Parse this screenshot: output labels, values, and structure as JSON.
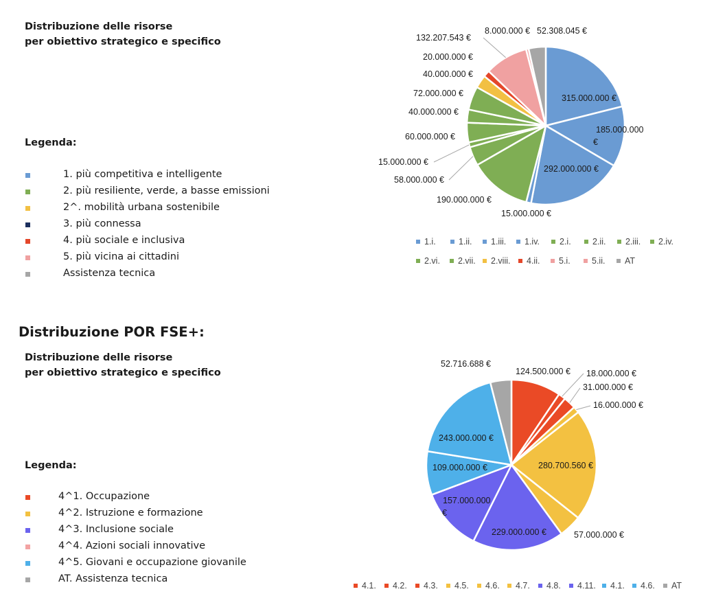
{
  "fesr": {
    "subtitle_lines": [
      "Distribuzione delle risorse",
      "per obiettivo strategico e specifico"
    ],
    "legend_title": "Legenda:",
    "legend": [
      {
        "label": "1. più competitiva e intelligente",
        "color": "#6a9bd3"
      },
      {
        "label": "2. più resiliente, verde, a basse emissioni",
        "color": "#7fae54"
      },
      {
        "label": "2^. mobilità urbana sostenibile",
        "color": "#f2c043"
      },
      {
        "label": "3. più connessa",
        "color": "#1c2f5e"
      },
      {
        "label": "4. più sociale e inclusiva",
        "color": "#e4472a"
      },
      {
        "label": "5. più vicina ai cittadini",
        "color": "#f0a1a1"
      },
      {
        "label": "Assistenza tecnica",
        "color": "#a6a6a6"
      }
    ]
  },
  "fse": {
    "section_title": "Distribuzione POR FSE+:",
    "subtitle_lines": [
      "Distribuzione delle risorse",
      "per obiettivo strategico e specifico"
    ],
    "legend_title": "Legenda:",
    "legend": [
      {
        "label": "4^1. Occupazione",
        "color": "#ea4a26"
      },
      {
        "label": "4^2. Istruzione e formazione",
        "color": "#f3c141"
      },
      {
        "label": "4^3. Inclusione sociale",
        "color": "#6b63ee"
      },
      {
        "label": "4^4. Azioni sociali innovative",
        "color": "#f3a3a3"
      },
      {
        "label": "4^5. Giovani e occupazione giovanile",
        "color": "#4eb0e9"
      },
      {
        "label": "AT. Assistenza tecnica",
        "color": "#a6a6a6"
      }
    ]
  },
  "chart_data": [
    {
      "type": "pie",
      "slices": [
        {
          "category": "1.i.",
          "value": 315000000,
          "label": "315.000.000 €",
          "color": "#6a9bd3"
        },
        {
          "category": "1.ii.",
          "value": 185000000,
          "label": "185.000.000 €",
          "color": "#6a9bd3"
        },
        {
          "category": "1.iii.",
          "value": 292000000,
          "label": "292.000.000 €",
          "color": "#6a9bd3"
        },
        {
          "category": "1.iv.",
          "value": 15000000,
          "label": "15.000.000 €",
          "color": "#6a9bd3"
        },
        {
          "category": "2.i.",
          "value": 190000000,
          "label": "190.000.000 €",
          "color": "#7fae54"
        },
        {
          "category": "2.ii.",
          "value": 58000000,
          "label": "58.000.000 €",
          "color": "#7fae54"
        },
        {
          "category": "2.iii.",
          "value": 15000000,
          "label": "15.000.000 €",
          "color": "#7fae54"
        },
        {
          "category": "2.iv.",
          "value": 60000000,
          "label": "60.000.000 €",
          "color": "#7fae54"
        },
        {
          "category": "2.vi.",
          "value": 40000000,
          "label": "40.000.000 €",
          "color": "#7fae54"
        },
        {
          "category": "2.vii.",
          "value": 72000000,
          "label": "72.000.000 €",
          "color": "#7fae54"
        },
        {
          "category": "2.viii.",
          "value": 40000000,
          "label": "40.000.000 €",
          "color": "#f2c043"
        },
        {
          "category": "4.ii.",
          "value": 20000000,
          "label": "20.000.000 €",
          "color": "#e4472a"
        },
        {
          "category": "5.i.",
          "value": 132207543,
          "label": "132.207.543 €",
          "color": "#f0a1a1"
        },
        {
          "category": "5.ii.",
          "value": 8000000,
          "label": "8.000.000 €",
          "color": "#f0a1a1"
        },
        {
          "category": "AT",
          "value": 52308045,
          "label": "52.308.045 €",
          "color": "#a6a6a6"
        }
      ],
      "legend_placement": "bottom"
    },
    {
      "type": "pie",
      "slices": [
        {
          "category": "4.1.",
          "value": 124500000,
          "label": "124.500.000 €",
          "color": "#ea4a26"
        },
        {
          "category": "4.2.",
          "value": 18000000,
          "label": "18.000.000 €",
          "color": "#ea4a26"
        },
        {
          "category": "4.3.",
          "value": 31000000,
          "label": "31.000.000 €",
          "color": "#ea4a26"
        },
        {
          "category": "4.5.",
          "value": 16000000,
          "label": "16.000.000 €",
          "color": "#f3c141"
        },
        {
          "category": "4.6.",
          "value": 280700560,
          "label": "280.700.560 €",
          "color": "#f3c141"
        },
        {
          "category": "4.7.",
          "value": 57000000,
          "label": "57.000.000 €",
          "color": "#f3c141"
        },
        {
          "category": "4.8.",
          "value": 229000000,
          "label": "229.000.000 €",
          "color": "#6b63ee"
        },
        {
          "category": "4.11.",
          "value": 157000000,
          "label": "157.000.000 €",
          "color": "#6b63ee"
        },
        {
          "category": "4.1.",
          "value": 109000000,
          "label": "109.000.000 €",
          "color": "#4eb0e9"
        },
        {
          "category": "4.6.",
          "value": 243000000,
          "label": "243.000.000 €",
          "color": "#4eb0e9"
        },
        {
          "category": "AT",
          "value": 52716688,
          "label": "52.716.688 €",
          "color": "#a6a6a6"
        }
      ],
      "legend_placement": "bottom"
    }
  ]
}
